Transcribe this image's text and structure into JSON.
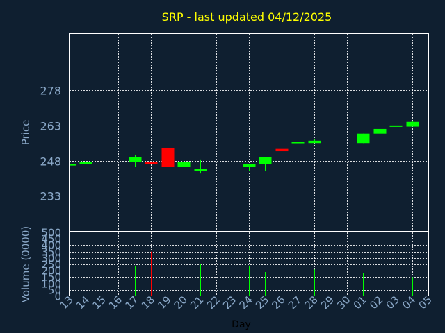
{
  "chart_data": {
    "type": "candlestick",
    "title": "SRP - last updated 04/12/2025",
    "price_ylabel": "Price",
    "volume_ylabel": "Volume (0000)",
    "xlabel": "Day",
    "price_ylim": [
      218,
      302
    ],
    "price_ticks": [
      "233",
      "248",
      "263",
      "278"
    ],
    "volume_ylim": [
      0,
      500
    ],
    "volume_ticks": [
      "0",
      "50",
      "100",
      "150",
      "200",
      "250",
      "300",
      "350",
      "400",
      "450",
      "500"
    ],
    "x_tick_labels": [
      "13",
      "14",
      "15",
      "16",
      "17",
      "18",
      "19",
      "20",
      "21",
      "22",
      "23",
      "24",
      "25",
      "26",
      "27",
      "28",
      "29",
      "30",
      "01",
      "02",
      "03",
      "04",
      "05"
    ],
    "grid": true,
    "colors": {
      "background": "#0f1f30",
      "up": "#00ff00",
      "down": "#ff0000",
      "title": "#ffff00",
      "text": "#8aa8c8",
      "frame": "#ffffff"
    },
    "candles": [
      {
        "x": "13",
        "open": 246.5,
        "high": 246.5,
        "low": 246.5,
        "close": 246.5,
        "volume": 0
      },
      {
        "x": "14",
        "open": 246.5,
        "high": 247.5,
        "low": 243,
        "close": 247.5,
        "volume": 150
      },
      {
        "x": "17",
        "open": 247.5,
        "high": 250.5,
        "low": 245.5,
        "close": 249.5,
        "volume": 235
      },
      {
        "x": "18",
        "open": 247.5,
        "high": 247.5,
        "low": 246.5,
        "close": 246.5,
        "volume": 350
      },
      {
        "x": "19",
        "open": 253.5,
        "high": 253.5,
        "low": 245.5,
        "close": 245.5,
        "volume": 140
      },
      {
        "x": "20",
        "open": 245.5,
        "high": 247.5,
        "low": 245.5,
        "close": 247.5,
        "volume": 195
      },
      {
        "x": "21",
        "open": 243.5,
        "high": 248.5,
        "low": 242.5,
        "close": 244.5,
        "volume": 250
      },
      {
        "x": "24",
        "open": 245.5,
        "high": 246.5,
        "low": 243.5,
        "close": 246.5,
        "volume": 240
      },
      {
        "x": "25",
        "open": 246.5,
        "high": 249.5,
        "low": 243.5,
        "close": 249.5,
        "volume": 190
      },
      {
        "x": "26",
        "open": 253,
        "high": 253.5,
        "low": 249.5,
        "close": 252,
        "volume": 460
      },
      {
        "x": "27",
        "open": 256,
        "high": 256,
        "low": 251,
        "close": 256,
        "volume": 280
      },
      {
        "x": "28",
        "open": 255.5,
        "high": 257,
        "low": 255.5,
        "close": 256.5,
        "volume": 210
      },
      {
        "x": "01",
        "open": 255.5,
        "high": 259.5,
        "low": 255.5,
        "close": 259.5,
        "volume": 185
      },
      {
        "x": "02",
        "open": 259.5,
        "high": 261.5,
        "low": 258,
        "close": 261.5,
        "volume": 230
      },
      {
        "x": "03",
        "open": 262.5,
        "high": 263,
        "low": 260,
        "close": 263,
        "volume": 175
      },
      {
        "x": "04",
        "open": 262.5,
        "high": 265,
        "low": 262.5,
        "close": 264.5,
        "volume": 150
      }
    ]
  }
}
